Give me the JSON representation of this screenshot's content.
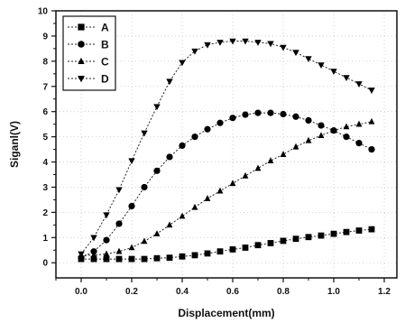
{
  "chart_data": {
    "type": "line",
    "xlabel": "Displacement(mm)",
    "ylabel": "Siganl(V)",
    "xlim": [
      -0.1,
      1.25
    ],
    "ylim": [
      -0.6,
      10
    ],
    "x_ticks": [
      "0.0",
      "0.2",
      "0.4",
      "0.6",
      "0.8",
      "1.0",
      "1.2"
    ],
    "y_ticks": [
      "0",
      "1",
      "2",
      "3",
      "4",
      "5",
      "6",
      "7",
      "8",
      "9",
      "10"
    ],
    "grid": true,
    "legend_position": "top-left",
    "x": [
      0.0,
      0.05,
      0.1,
      0.15,
      0.2,
      0.25,
      0.3,
      0.35,
      0.4,
      0.45,
      0.5,
      0.55,
      0.6,
      0.65,
      0.7,
      0.75,
      0.8,
      0.85,
      0.9,
      0.95,
      1.0,
      1.05,
      1.1,
      1.15
    ],
    "series": [
      {
        "name": "A",
        "marker": "square",
        "values": [
          0.15,
          0.15,
          0.15,
          0.15,
          0.15,
          0.15,
          0.18,
          0.2,
          0.25,
          0.3,
          0.37,
          0.45,
          0.53,
          0.6,
          0.7,
          0.78,
          0.87,
          0.95,
          1.02,
          1.08,
          1.15,
          1.22,
          1.28,
          1.33
        ]
      },
      {
        "name": "B",
        "marker": "circle",
        "values": [
          0.2,
          0.45,
          0.9,
          1.55,
          2.25,
          3.0,
          3.65,
          4.2,
          4.65,
          5.0,
          5.3,
          5.55,
          5.75,
          5.88,
          5.95,
          5.95,
          5.9,
          5.8,
          5.65,
          5.45,
          5.25,
          5.0,
          4.75,
          4.5
        ]
      },
      {
        "name": "C",
        "marker": "triangle-up",
        "values": [
          0.3,
          0.3,
          0.35,
          0.45,
          0.6,
          0.85,
          1.15,
          1.5,
          1.85,
          2.2,
          2.55,
          2.85,
          3.15,
          3.45,
          3.75,
          4.05,
          4.3,
          4.6,
          4.85,
          5.05,
          5.25,
          5.4,
          5.5,
          5.6
        ]
      },
      {
        "name": "D",
        "marker": "triangle-down",
        "values": [
          0.35,
          1.0,
          1.9,
          2.9,
          4.05,
          5.15,
          6.2,
          7.2,
          7.95,
          8.4,
          8.65,
          8.75,
          8.8,
          8.8,
          8.75,
          8.7,
          8.55,
          8.35,
          8.1,
          7.85,
          7.6,
          7.35,
          7.1,
          6.85
        ]
      }
    ]
  }
}
